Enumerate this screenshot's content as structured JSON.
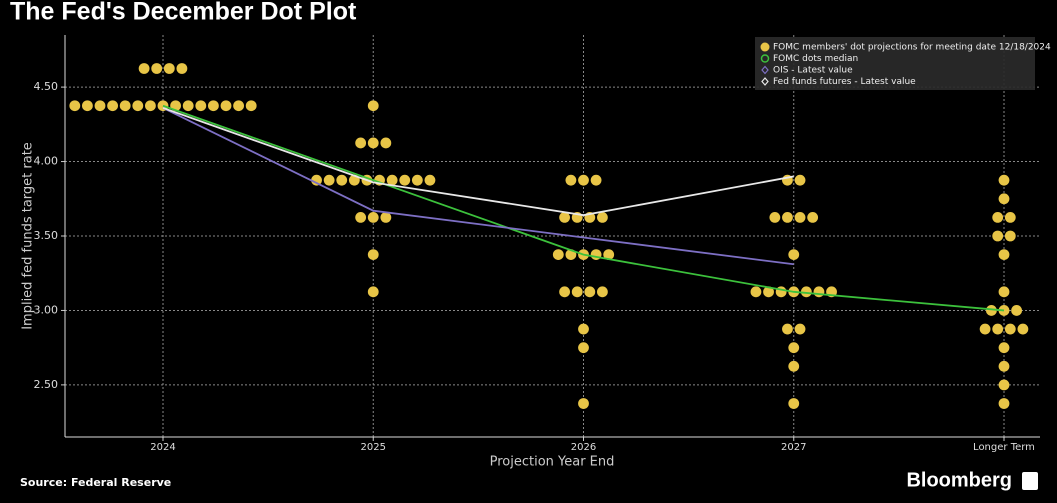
{
  "chart_data": {
    "type": "dot_plot",
    "title": "The Fed's December Dot Plot",
    "y_label": "Implied fed funds target rate",
    "x_label": "Projection Year End",
    "source": "Source: Federal Reserve",
    "brand": "Bloomberg",
    "categories": [
      "2024",
      "2025",
      "2026",
      "2027",
      "Longer Term"
    ],
    "ylim": [
      2.15,
      4.85
    ],
    "yticks": [
      {
        "value": 2.5,
        "label": "2.50"
      },
      {
        "value": 3,
        "label": "3.00"
      },
      {
        "value": 3.5,
        "label": "3.50"
      },
      {
        "value": 4,
        "label": "4.00"
      },
      {
        "value": 4.5,
        "label": "4.50"
      }
    ],
    "grid": true,
    "legend_position": "top-right",
    "dot_series": {
      "name": "FOMC members' dot projections for meeting date 12/18/2024",
      "color": "#e8c547",
      "values": [
        [
          4.625,
          4.625,
          4.625,
          4.625,
          4.375,
          4.375,
          4.375,
          4.375,
          4.375,
          4.375,
          4.375,
          4.375,
          4.375,
          4.375,
          4.375,
          4.375,
          4.375,
          4.375,
          4.375
        ],
        [
          4.375,
          4.125,
          4.125,
          4.125,
          3.875,
          3.875,
          3.875,
          3.875,
          3.875,
          3.875,
          3.875,
          3.875,
          3.875,
          3.875,
          3.625,
          3.625,
          3.625,
          3.375,
          3.125
        ],
        [
          3.875,
          3.875,
          3.875,
          3.625,
          3.625,
          3.625,
          3.625,
          3.375,
          3.375,
          3.375,
          3.375,
          3.375,
          3.125,
          3.125,
          3.125,
          3.125,
          2.875,
          2.75,
          2.375
        ],
        [
          3.875,
          3.875,
          3.625,
          3.625,
          3.625,
          3.625,
          3.375,
          3.125,
          3.125,
          3.125,
          3.125,
          3.125,
          3.125,
          3.125,
          2.875,
          2.875,
          2.75,
          2.625,
          2.375
        ],
        [
          3.875,
          3.75,
          3.625,
          3.625,
          3.5,
          3.5,
          3.375,
          3.125,
          3,
          3,
          3,
          2.875,
          2.875,
          2.875,
          2.875,
          2.75,
          2.625,
          2.5,
          2.375
        ]
      ]
    },
    "series": [
      {
        "name": "FOMC dots median",
        "color": "#3cc13c",
        "marker": "circle",
        "values": [
          4.375,
          3.875,
          3.375,
          3.125,
          3.0
        ]
      },
      {
        "name": "OIS - Latest value",
        "color": "#7d6fc4",
        "marker": "diamond",
        "values": [
          4.36,
          3.67,
          3.49,
          3.31,
          null
        ]
      },
      {
        "name": "Fed funds futures - Latest value",
        "color": "#e8e8e8",
        "marker": "diamond",
        "values": [
          4.36,
          3.86,
          3.64,
          3.9,
          null
        ]
      }
    ]
  }
}
